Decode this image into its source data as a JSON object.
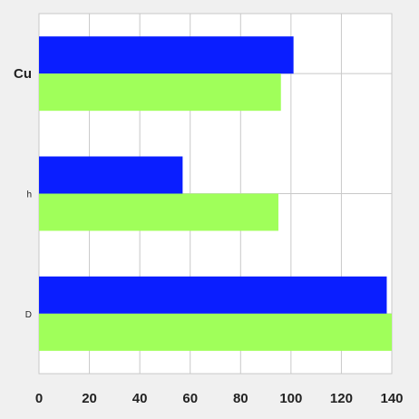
{
  "chart_data": {
    "type": "bar",
    "orientation": "horizontal",
    "categories": [
      "Cu",
      "h",
      "D"
    ],
    "series": [
      {
        "values": [
          101,
          57,
          138
        ],
        "color": "#0a1eff"
      },
      {
        "values": [
          96,
          95,
          140
        ],
        "color": "#a0ff5a"
      }
    ],
    "xlim": [
      0,
      140
    ],
    "xticks": [
      "0",
      "20",
      "40",
      "60",
      "80",
      "100",
      "120",
      "140"
    ],
    "grid": true,
    "title": "",
    "xlabel": "",
    "ylabel": ""
  }
}
